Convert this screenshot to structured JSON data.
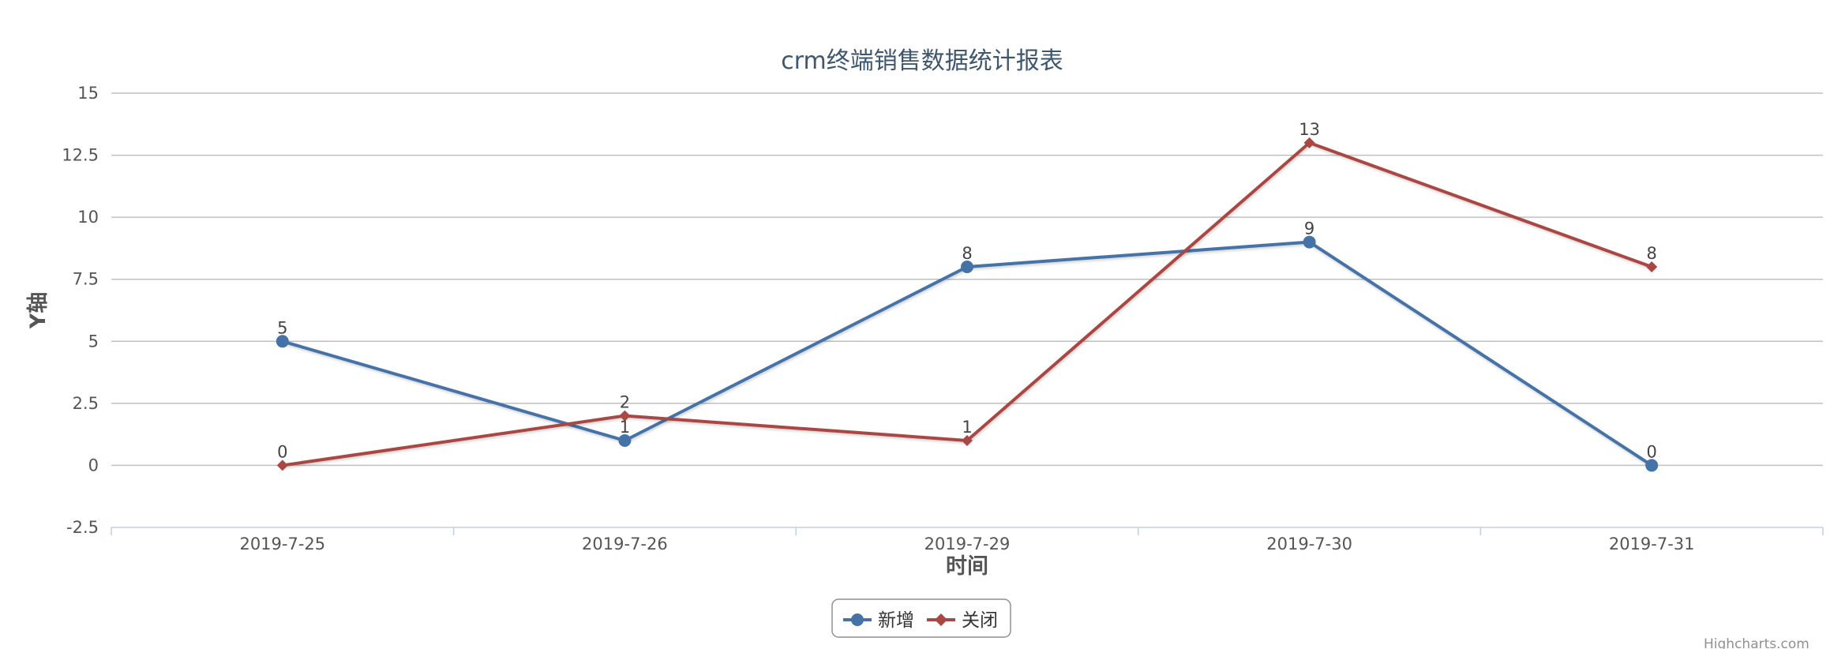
{
  "chart_data": {
    "type": "line",
    "title": "crm终端销售数据统计报表",
    "xlabel": "时间",
    "ylabel": "Y轴",
    "categories": [
      "2019-7-25",
      "2019-7-26",
      "2019-7-29",
      "2019-7-30",
      "2019-7-31"
    ],
    "ylim": [
      -2.5,
      15
    ],
    "yticks": [
      -2.5,
      0,
      2.5,
      5,
      7.5,
      10,
      12.5,
      15
    ],
    "ytick_labels": [
      "-2.5",
      "0",
      "2.5",
      "5",
      "7.5",
      "10",
      "12.5",
      "15"
    ],
    "grid": true,
    "legend_position": "bottom-center",
    "series": [
      {
        "name": "新增",
        "values": [
          5,
          1,
          8,
          9,
          0
        ],
        "color": "#4572a7",
        "marker": "circle",
        "data_labels": [
          "5",
          "1",
          "8",
          "9",
          "0"
        ]
      },
      {
        "name": "关闭",
        "values": [
          0,
          2,
          1,
          13,
          8
        ],
        "color": "#aa4643",
        "marker": "diamond",
        "data_labels": [
          "0",
          "2",
          "1",
          "13",
          "8"
        ]
      }
    ]
  },
  "credits": "Highcharts.com"
}
